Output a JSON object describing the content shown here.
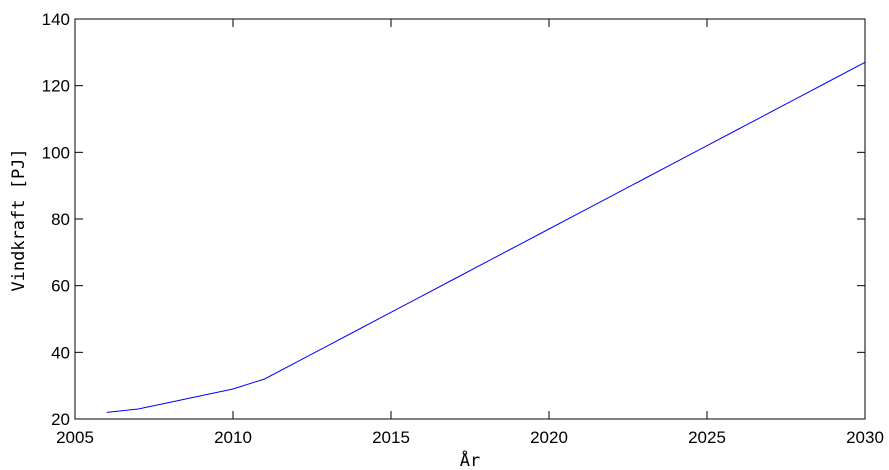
{
  "chart_data": {
    "type": "line",
    "title": "",
    "xlabel": "År",
    "ylabel": "Vindkraft [PJ]",
    "xlim": [
      2005,
      2030
    ],
    "ylim": [
      20,
      140
    ],
    "x_ticks": [
      2005,
      2010,
      2015,
      2020,
      2025,
      2030
    ],
    "y_ticks": [
      20,
      40,
      60,
      80,
      100,
      120,
      140
    ],
    "grid": false,
    "legend": "none",
    "series": [
      {
        "color": "#0000ff",
        "x": [
          2006,
          2007,
          2008,
          2009,
          2010,
          2011,
          2012,
          2013,
          2014,
          2015,
          2016,
          2017,
          2018,
          2019,
          2020,
          2021,
          2022,
          2023,
          2024,
          2025,
          2026,
          2027,
          2028,
          2029,
          2030
        ],
        "y": [
          22,
          23,
          25,
          27,
          29,
          32,
          37,
          42,
          47,
          52,
          57,
          62,
          67,
          72,
          77,
          82,
          87,
          92,
          97,
          102,
          107,
          112,
          117,
          122,
          127
        ]
      }
    ]
  }
}
